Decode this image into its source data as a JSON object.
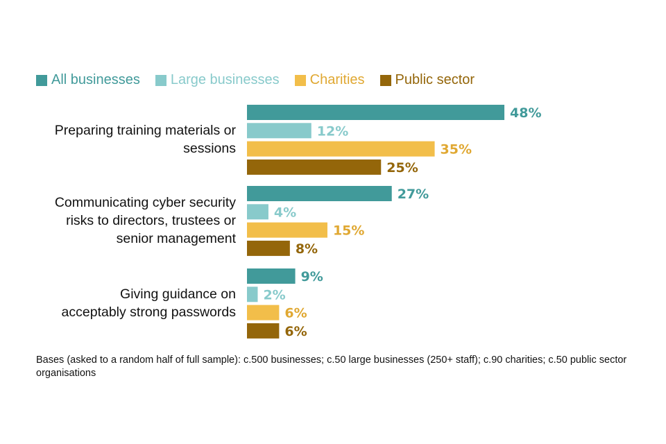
{
  "chart_data": {
    "type": "bar",
    "orientation": "horizontal",
    "categories": [
      "Preparing training materials or sessions",
      "Communicating cyber security risks to directors, trustees or senior management",
      "Giving guidance on acceptably strong passwords"
    ],
    "category_lines": [
      [
        "Preparing training materials or",
        "sessions"
      ],
      [
        "Communicating cyber security",
        "risks to directors, trustees or",
        "senior management"
      ],
      [
        "Giving guidance on",
        "acceptably strong passwords"
      ]
    ],
    "series": [
      {
        "name": "All businesses",
        "color": "#419a9a",
        "text_color": "#419a9a",
        "values": [
          48,
          27,
          9
        ]
      },
      {
        "name": "Large businesses",
        "color": "#88cacb",
        "text_color": "#88cacb",
        "values": [
          12,
          4,
          2
        ]
      },
      {
        "name": "Charities",
        "color": "#f2be4a",
        "text_color": "#e0a832",
        "values": [
          35,
          15,
          6
        ]
      },
      {
        "name": "Public sector",
        "color": "#94660a",
        "text_color": "#94660a",
        "values": [
          25,
          8,
          6
        ]
      }
    ],
    "value_suffix": "%",
    "xlim": [
      0,
      100
    ],
    "grid": false,
    "legend": "top-left"
  },
  "note": "Bases (asked to a random half of full sample): c.500 businesses; c.50 large businesses (250+ staff); c.90 charities; c.50 public sector organisations"
}
